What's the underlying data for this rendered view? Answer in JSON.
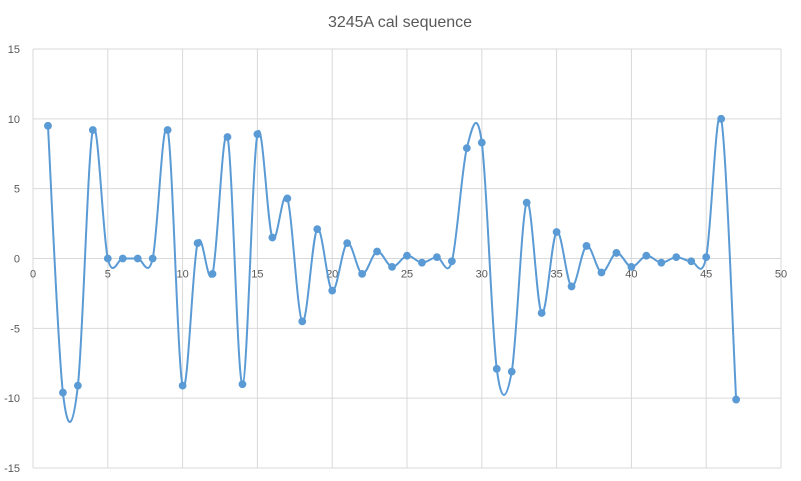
{
  "chart_data": {
    "type": "scatter",
    "mode": "smooth-line-with-markers",
    "title": "3245A cal sequence",
    "xlabel": "",
    "ylabel": "",
    "xlim": [
      0,
      50
    ],
    "ylim": [
      -15,
      15
    ],
    "x_ticks": [
      0,
      5,
      10,
      15,
      20,
      25,
      30,
      35,
      40,
      45,
      50
    ],
    "y_ticks": [
      -15,
      -10,
      -5,
      0,
      5,
      10,
      15
    ],
    "grid": "major gridlines on both axes",
    "legend": "none",
    "series": [
      {
        "color": "#5b9bd5",
        "points": [
          [
            1,
            9.5
          ],
          [
            2,
            -9.6
          ],
          [
            3,
            -9.1
          ],
          [
            4,
            9.2
          ],
          [
            5,
            0.0
          ],
          [
            6,
            0.0
          ],
          [
            7,
            0.0
          ],
          [
            8,
            0.0
          ],
          [
            9,
            9.2
          ],
          [
            10,
            -9.1
          ],
          [
            11,
            1.1
          ],
          [
            12,
            -1.1
          ],
          [
            13,
            8.7
          ],
          [
            14,
            -9.0
          ],
          [
            15,
            8.9
          ],
          [
            16,
            1.5
          ],
          [
            17,
            4.3
          ],
          [
            18,
            -4.5
          ],
          [
            19,
            2.1
          ],
          [
            20,
            -2.3
          ],
          [
            21,
            1.1
          ],
          [
            22,
            -1.1
          ],
          [
            23,
            0.5
          ],
          [
            24,
            -0.6
          ],
          [
            25,
            0.2
          ],
          [
            26,
            -0.3
          ],
          [
            27,
            0.1
          ],
          [
            28,
            -0.2
          ],
          [
            29,
            7.9
          ],
          [
            30,
            8.3
          ],
          [
            31,
            -7.9
          ],
          [
            32,
            -8.1
          ],
          [
            33,
            4.0
          ],
          [
            34,
            -3.9
          ],
          [
            35,
            1.9
          ],
          [
            36,
            -2.0
          ],
          [
            37,
            0.9
          ],
          [
            38,
            -1.0
          ],
          [
            39,
            0.4
          ],
          [
            40,
            -0.6
          ],
          [
            41,
            0.2
          ],
          [
            42,
            -0.3
          ],
          [
            43,
            0.1
          ],
          [
            44,
            -0.2
          ],
          [
            45,
            0.1
          ],
          [
            46,
            10.0
          ],
          [
            47,
            -10.1
          ]
        ]
      }
    ]
  },
  "colors": {
    "background": "#ffffff",
    "gridline": "#d9d9d9",
    "axis_text": "#595959",
    "series": "#5b9bd5"
  }
}
